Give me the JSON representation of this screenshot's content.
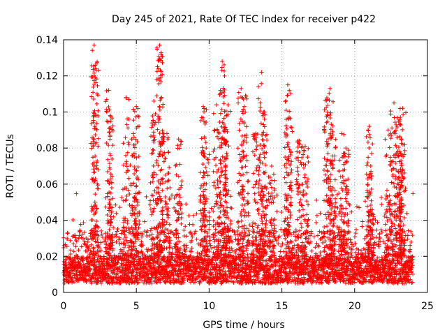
{
  "chart_data": {
    "type": "scatter",
    "title": "Day 245 of 2021, Rate Of TEC Index for receiver p422",
    "xlabel": "GPS time / hours",
    "ylabel": "ROTI / TECUs",
    "xlim": [
      0,
      25
    ],
    "ylim": [
      0,
      0.14
    ],
    "xticks": [
      0,
      5,
      10,
      15,
      20,
      25
    ],
    "yticks": [
      0,
      0.02,
      0.04,
      0.06,
      0.08,
      0.1,
      0.12,
      0.14
    ],
    "xtick_labels": [
      "0",
      "5",
      "10",
      "15",
      "20",
      "25"
    ],
    "ytick_labels": [
      "0",
      "0.02",
      "0.04",
      "0.06",
      "0.08",
      "0.1",
      "0.12",
      "0.14"
    ],
    "grid": true,
    "marker": "+",
    "color": "#ff0000",
    "series": [
      {
        "name": "ROTI",
        "x_range_hours": [
          0,
          24
        ],
        "baseline_range": [
          0.005,
          0.02
        ],
        "activity_peaks": [
          {
            "x": 2.1,
            "y": 0.137
          },
          {
            "x": 2.2,
            "y": 0.124
          },
          {
            "x": 3.1,
            "y": 0.112
          },
          {
            "x": 3.2,
            "y": 0.098
          },
          {
            "x": 4.3,
            "y": 0.108
          },
          {
            "x": 4.8,
            "y": 0.088
          },
          {
            "x": 5.0,
            "y": 0.103
          },
          {
            "x": 6.2,
            "y": 0.106
          },
          {
            "x": 6.6,
            "y": 0.137
          },
          {
            "x": 6.7,
            "y": 0.132
          },
          {
            "x": 7.1,
            "y": 0.088
          },
          {
            "x": 7.9,
            "y": 0.085
          },
          {
            "x": 9.6,
            "y": 0.103
          },
          {
            "x": 9.8,
            "y": 0.08
          },
          {
            "x": 10.5,
            "y": 0.104
          },
          {
            "x": 10.9,
            "y": 0.128
          },
          {
            "x": 11.0,
            "y": 0.111
          },
          {
            "x": 11.3,
            "y": 0.104
          },
          {
            "x": 12.2,
            "y": 0.113
          },
          {
            "x": 12.5,
            "y": 0.109
          },
          {
            "x": 13.2,
            "y": 0.088
          },
          {
            "x": 13.6,
            "y": 0.122
          },
          {
            "x": 13.8,
            "y": 0.1
          },
          {
            "x": 14.3,
            "y": 0.07
          },
          {
            "x": 15.4,
            "y": 0.115
          },
          {
            "x": 15.5,
            "y": 0.097
          },
          {
            "x": 16.2,
            "y": 0.084
          },
          {
            "x": 16.6,
            "y": 0.081
          },
          {
            "x": 18.1,
            "y": 0.107
          },
          {
            "x": 18.3,
            "y": 0.113
          },
          {
            "x": 18.5,
            "y": 0.089
          },
          {
            "x": 19.1,
            "y": 0.088
          },
          {
            "x": 19.4,
            "y": 0.08
          },
          {
            "x": 21.0,
            "y": 0.092
          },
          {
            "x": 21.1,
            "y": 0.07
          },
          {
            "x": 22.3,
            "y": 0.09
          },
          {
            "x": 22.7,
            "y": 0.105
          },
          {
            "x": 23.0,
            "y": 0.095
          },
          {
            "x": 23.2,
            "y": 0.085
          },
          {
            "x": 23.3,
            "y": 0.102
          }
        ]
      }
    ]
  }
}
